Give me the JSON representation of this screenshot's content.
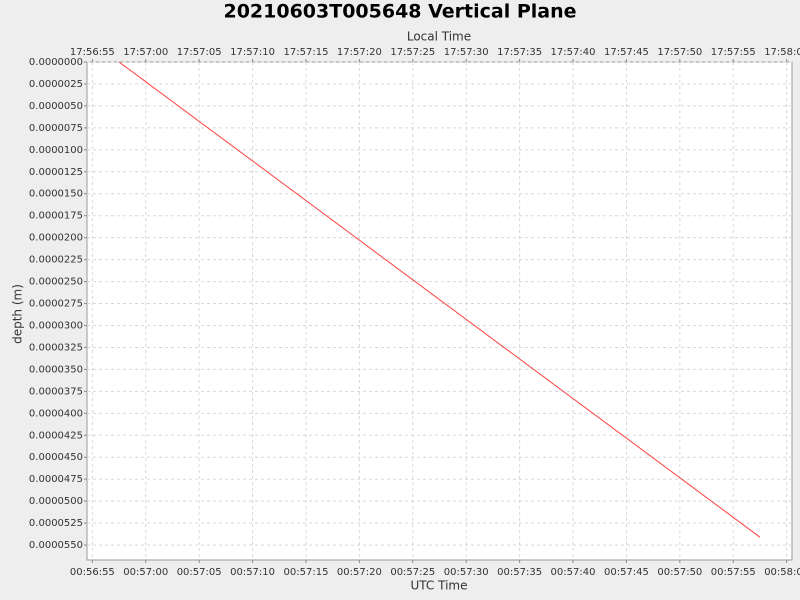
{
  "chart_data": {
    "type": "line",
    "title": "20210603T005648 Vertical Plane",
    "x_label": "UTC Time",
    "x2_label": "Local Time",
    "y_label": "depth (m)",
    "x": [
      "00:56:57.5",
      "00:57:57.5"
    ],
    "values": [
      0,
      5.41e-05
    ],
    "color": "#ff4040",
    "xlim": [
      "00:56:54.5",
      "00:58:00.5"
    ],
    "xticks": [
      "00:56:55",
      "00:57:00",
      "00:57:05",
      "00:57:10",
      "00:57:15",
      "00:57:20",
      "00:57:25",
      "00:57:30",
      "00:57:35",
      "00:57:40",
      "00:57:45",
      "00:57:50",
      "00:57:55",
      "00:58:00"
    ],
    "x2lim": [
      "17:56:54.5",
      "17:58:00.5"
    ],
    "x2ticks": [
      "17:56:55",
      "17:57:00",
      "17:57:05",
      "17:57:10",
      "17:57:15",
      "17:57:20",
      "17:57:25",
      "17:57:30",
      "17:57:35",
      "17:57:40",
      "17:57:45",
      "17:57:50",
      "17:57:55",
      "17:58:00"
    ],
    "ylim": [
      0,
      5.67e-05
    ],
    "y_inverted": true,
    "yticks": [
      {
        "value": 0,
        "label": "0.0000000"
      },
      {
        "value": 2.5e-06,
        "label": "0.0000025"
      },
      {
        "value": 5e-06,
        "label": "0.0000050"
      },
      {
        "value": 7.5e-06,
        "label": "0.0000075"
      },
      {
        "value": 1e-05,
        "label": "0.0000100"
      },
      {
        "value": 1.25e-05,
        "label": "0.0000125"
      },
      {
        "value": 1.5e-05,
        "label": "0.0000150"
      },
      {
        "value": 1.75e-05,
        "label": "0.0000175"
      },
      {
        "value": 2e-05,
        "label": "0.0000200"
      },
      {
        "value": 2.25e-05,
        "label": "0.0000225"
      },
      {
        "value": 2.5e-05,
        "label": "0.0000250"
      },
      {
        "value": 2.75e-05,
        "label": "0.0000275"
      },
      {
        "value": 3e-05,
        "label": "0.0000300"
      },
      {
        "value": 3.25e-05,
        "label": "0.0000325"
      },
      {
        "value": 3.5e-05,
        "label": "0.0000350"
      },
      {
        "value": 3.75e-05,
        "label": "0.0000375"
      },
      {
        "value": 4e-05,
        "label": "0.0000400"
      },
      {
        "value": 4.25e-05,
        "label": "0.0000425"
      },
      {
        "value": 4.5e-05,
        "label": "0.0000450"
      },
      {
        "value": 4.75e-05,
        "label": "0.0000475"
      },
      {
        "value": 5e-05,
        "label": "0.0000500"
      },
      {
        "value": 5.25e-05,
        "label": "0.0000525"
      },
      {
        "value": 5.5e-05,
        "label": "0.0000550"
      }
    ],
    "grid": true
  }
}
